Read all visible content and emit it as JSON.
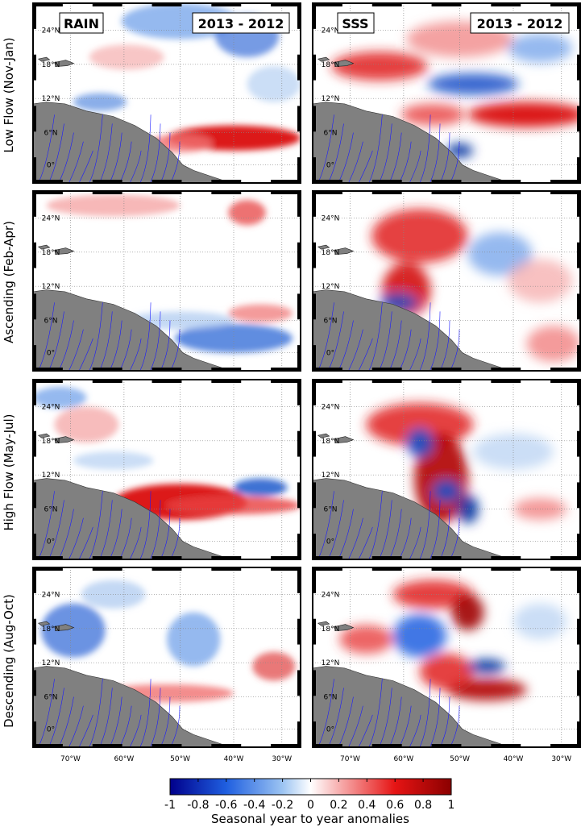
{
  "figure": {
    "columns": [
      {
        "name": "RAIN",
        "period": "2013 - 2012"
      },
      {
        "name": "SSS",
        "period": "2013 - 2012"
      }
    ],
    "rows": [
      {
        "label": "Low Flow (Nov-Jan)"
      },
      {
        "label": "Ascending (Feb-Apr)"
      },
      {
        "label": "High Flow (May-Jul)"
      },
      {
        "label": "Descending (Aug-Oct)"
      }
    ],
    "lat_ticks": [
      "24°N",
      "18°N",
      "12°N",
      "6°N",
      "0°"
    ],
    "lon_ticks": [
      "70°W",
      "60°W",
      "50°W",
      "40°W",
      "30°W"
    ],
    "colorbar": {
      "ticks": [
        "-1",
        "-0.8",
        "-0.6",
        "-0.4",
        "-0.2",
        "0",
        "0.2",
        "0.4",
        "0.6",
        "0.8",
        "1"
      ],
      "label": "Seasonal year to year anomalies",
      "range": [
        -1,
        1
      ]
    },
    "colors": {
      "land": "#808080",
      "rivers": "#1a1aff",
      "negative_max": "#00008b",
      "positive_max": "#8b0000"
    }
  }
}
